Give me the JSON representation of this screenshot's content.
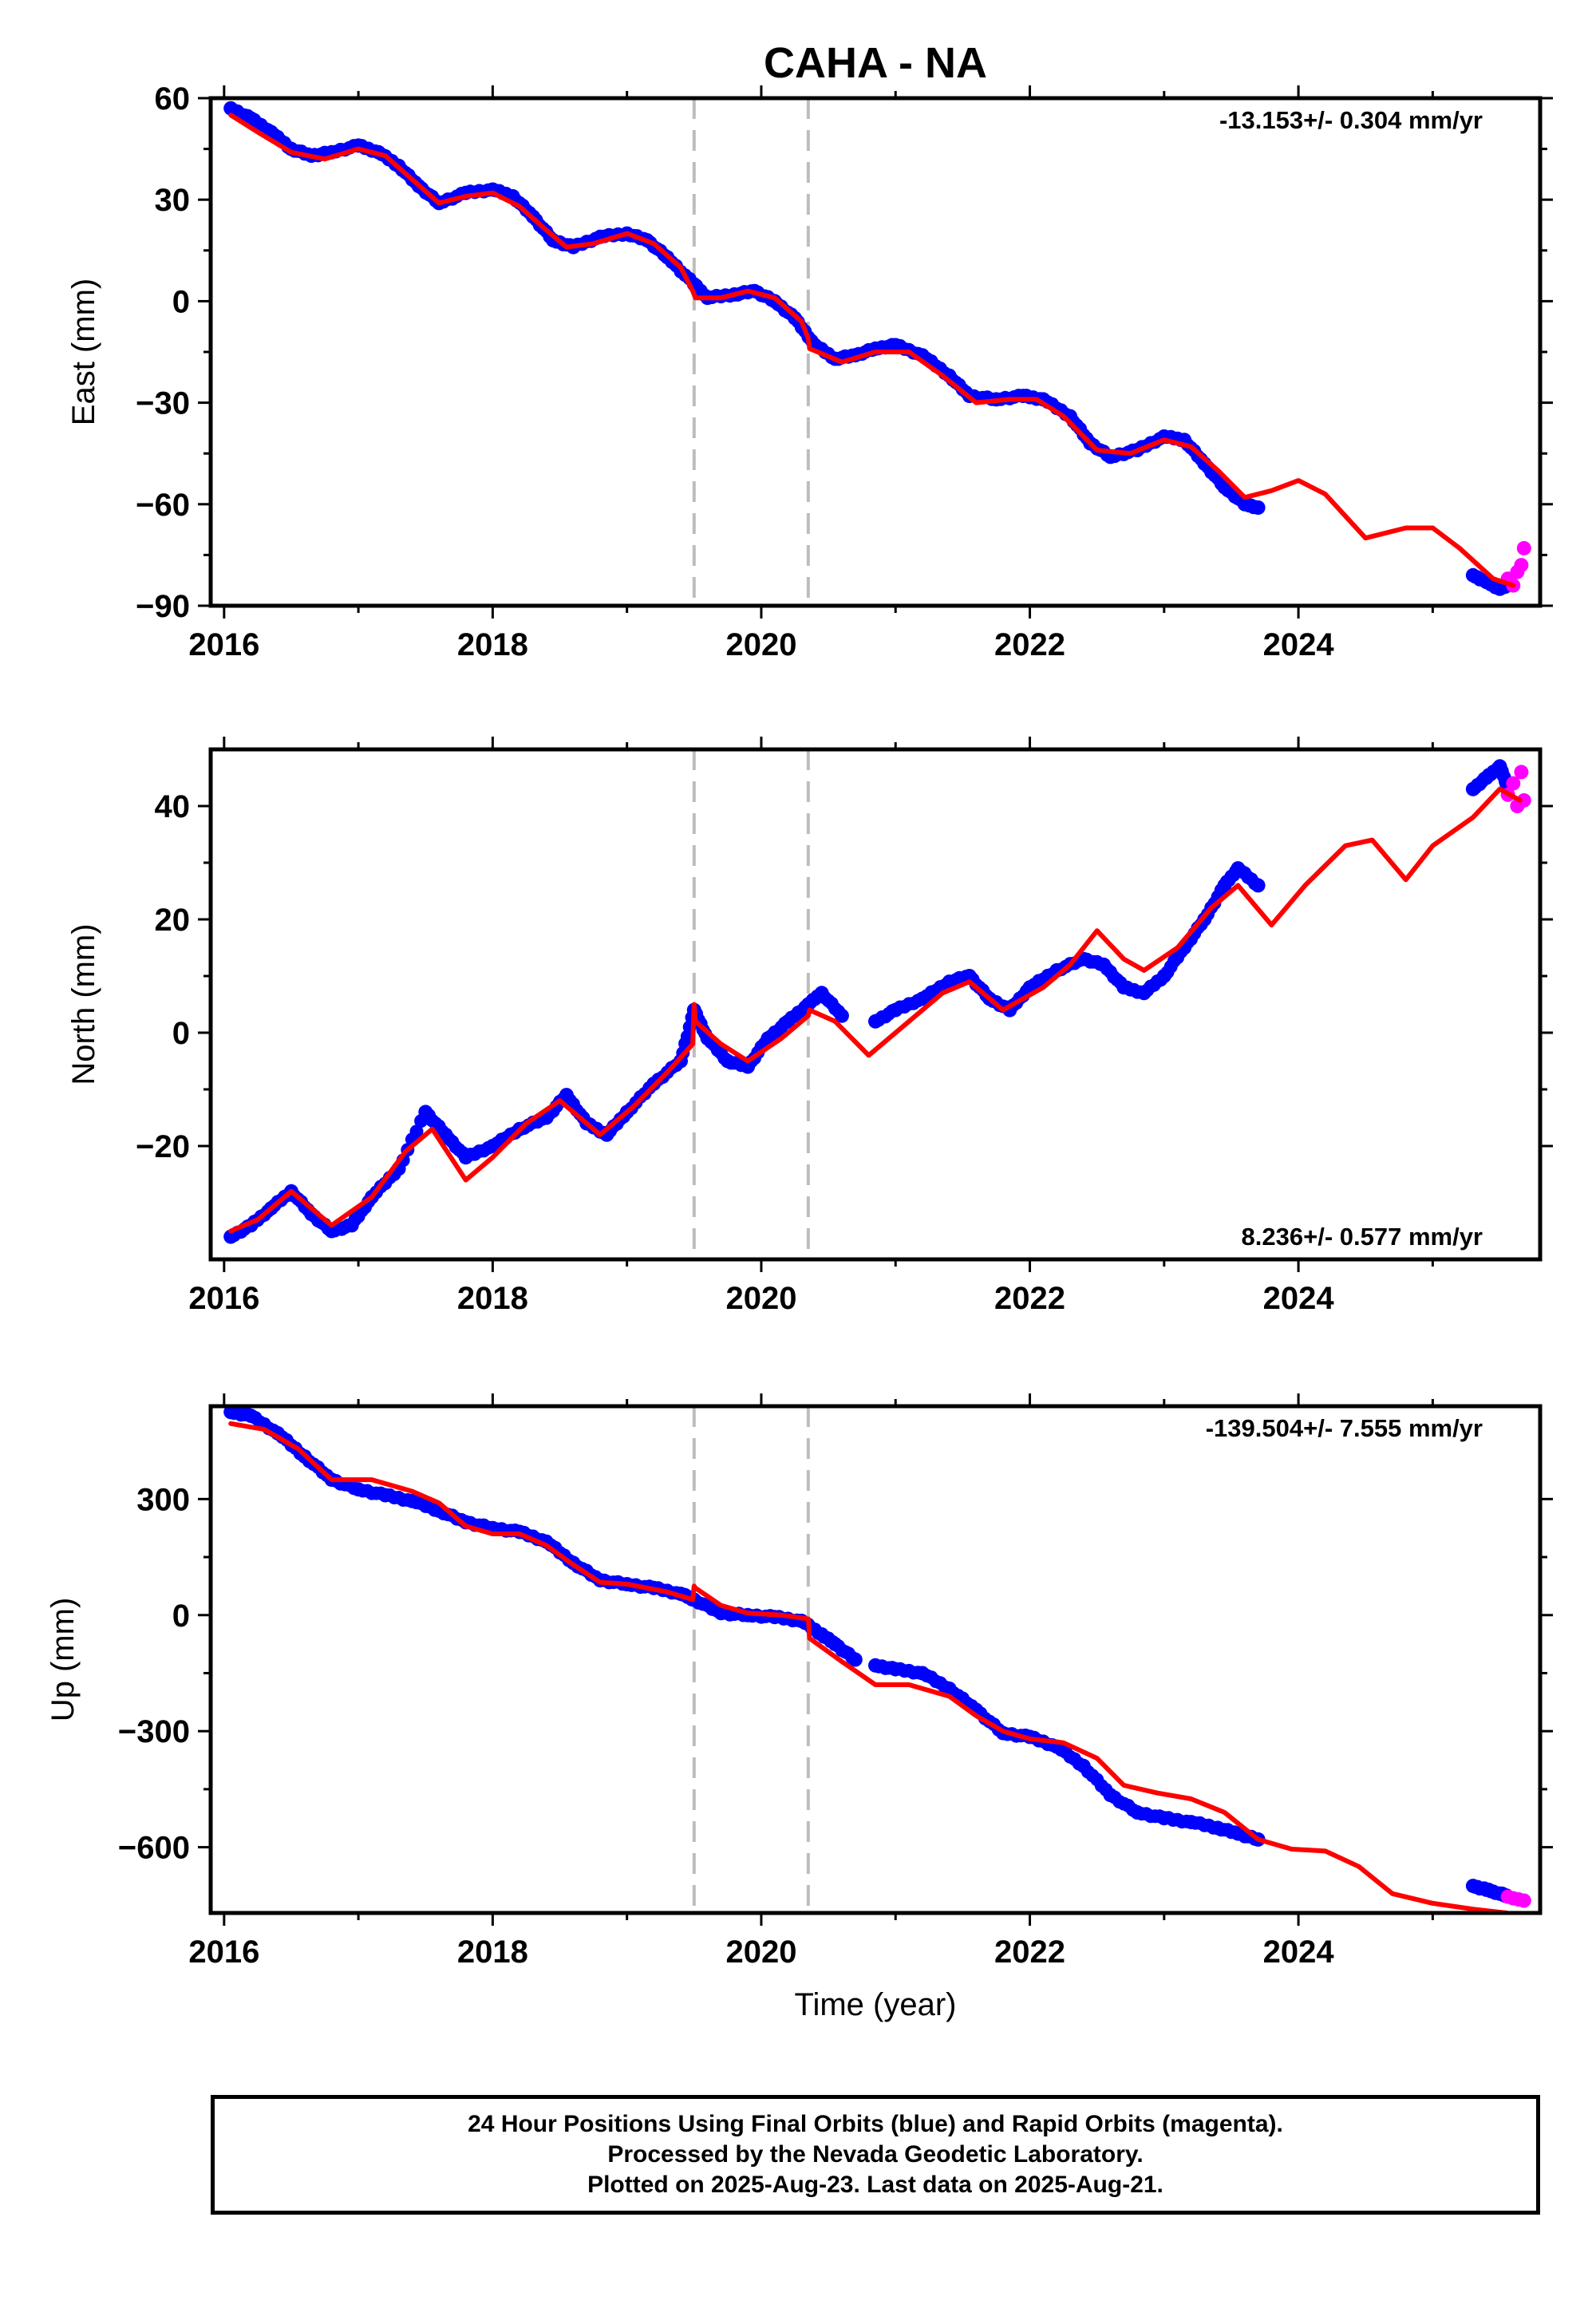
{
  "chart_data": [
    {
      "type": "scatter",
      "title": "CAHA - NA",
      "xlabel": "",
      "ylabel": "East (mm)",
      "xlim": [
        2015.9,
        2025.8
      ],
      "ylim": [
        -90,
        60
      ],
      "xticks": [
        2016,
        2018,
        2020,
        2022,
        2024
      ],
      "yticks": [
        60,
        30,
        0,
        -30,
        -60,
        -90
      ],
      "tick_labels": {
        "x": [
          "2016",
          "2018",
          "2020",
          "2022",
          "2024"
        ],
        "y": [
          "60",
          "30",
          "0",
          "−30",
          "−60",
          "−90"
        ]
      },
      "rate": "-13.153+/- 0.304 mm/yr",
      "rate_position": "top-right",
      "grid": false,
      "dashed_lines_x": [
        2019.5,
        2020.35
      ],
      "series": [
        {
          "kind": "final-orbits",
          "marker": "dot",
          "color": "#0000ff",
          "segments": [
            {
              "x": [
                2016.05,
                2016.2,
                2016.35,
                2016.5,
                2016.65,
                2016.8,
                2017.0,
                2017.15,
                2017.3,
                2017.45,
                2017.6,
                2017.8,
                2018.0,
                2018.15,
                2018.3,
                2018.45,
                2018.6,
                2018.8,
                2019.0,
                2019.15,
                2019.3,
                2019.5,
                2019.6,
                2019.8,
                2019.95,
                2020.1,
                2020.25,
                2020.4,
                2020.55,
                2020.7,
                2020.85,
                2021.0,
                2021.2,
                2021.4,
                2021.55,
                2021.75,
                2021.95,
                2022.1,
                2022.3,
                2022.45,
                2022.6,
                2022.8,
                2023.0,
                2023.15,
                2023.3,
                2023.45,
                2023.6,
                2023.7
              ],
              "y": [
                57,
                54,
                50,
                45,
                43,
                44,
                46,
                44,
                40,
                34,
                29,
                32,
                33,
                31,
                25,
                18,
                16,
                19,
                20,
                18,
                13,
                5,
                1,
                2,
                3,
                0,
                -5,
                -13,
                -17,
                -16,
                -14,
                -13,
                -16,
                -22,
                -28,
                -29,
                -28,
                -29,
                -34,
                -42,
                -46,
                -44,
                -40,
                -41,
                -48,
                -55,
                -60,
                -61
              ]
            },
            {
              "x": [
                2025.3,
                2025.4,
                2025.5,
                2025.55
              ],
              "y": [
                -81,
                -83,
                -85,
                -84
              ]
            }
          ]
        },
        {
          "kind": "rapid-orbits",
          "marker": "dot",
          "color": "#ff00ff",
          "x": [
            2025.56,
            2025.6,
            2025.63,
            2025.66,
            2025.68
          ],
          "y": [
            -82,
            -84,
            -80,
            -78,
            -73
          ]
        },
        {
          "kind": "model-fit",
          "marker": "line",
          "color": "#ff0000",
          "x": [
            2016.05,
            2016.25,
            2016.5,
            2016.75,
            2017.0,
            2017.2,
            2017.4,
            2017.6,
            2017.8,
            2018.0,
            2018.2,
            2018.4,
            2018.55,
            2018.75,
            2019.0,
            2019.2,
            2019.4,
            2019.49,
            2019.51,
            2019.7,
            2019.9,
            2020.1,
            2020.3,
            2020.35,
            2020.36,
            2020.6,
            2020.85,
            2021.1,
            2021.35,
            2021.6,
            2021.85,
            2022.05,
            2022.25,
            2022.5,
            2022.75,
            2023.0,
            2023.2,
            2023.4,
            2023.6,
            2023.8,
            2024.0,
            2024.2,
            2024.5,
            2024.8,
            2025.0,
            2025.2,
            2025.45,
            2025.6
          ],
          "y": [
            55,
            50,
            44,
            42,
            45,
            43,
            36,
            29,
            31,
            32,
            28,
            21,
            16,
            17,
            20,
            17,
            10,
            3,
            1,
            1,
            3,
            1,
            -6,
            -11,
            -14,
            -18,
            -15,
            -15,
            -22,
            -30,
            -29,
            -29,
            -34,
            -44,
            -45,
            -41,
            -43,
            -50,
            -58,
            -56,
            -53,
            -57,
            -70,
            -67,
            -67,
            -73,
            -82,
            -84
          ]
        }
      ]
    },
    {
      "type": "scatter",
      "xlabel": "",
      "ylabel": "North (mm)",
      "xlim": [
        2015.9,
        2025.8
      ],
      "ylim": [
        -40,
        50
      ],
      "xticks": [
        2016,
        2018,
        2020,
        2022,
        2024
      ],
      "yticks": [
        40,
        20,
        0,
        -20
      ],
      "tick_labels": {
        "x": [
          "2016",
          "2018",
          "2020",
          "2022",
          "2024"
        ],
        "y": [
          "40",
          "20",
          "0",
          "−20"
        ]
      },
      "rate": "8.236+/- 0.577 mm/yr",
      "rate_position": "bottom-right",
      "grid": false,
      "dashed_lines_x": [
        2019.5,
        2020.35
      ],
      "series": [
        {
          "kind": "final-orbits",
          "marker": "dot",
          "color": "#0000ff",
          "segments": [
            {
              "x": [
                2016.05,
                2016.2,
                2016.35,
                2016.5,
                2016.65,
                2016.8,
                2016.95,
                2017.1,
                2017.3,
                2017.5,
                2017.65,
                2017.8,
                2018.0,
                2018.2,
                2018.4,
                2018.55,
                2018.7,
                2018.85,
                2019.0,
                2019.2,
                2019.4,
                2019.5,
                2019.6,
                2019.75,
                2019.9,
                2020.05,
                2020.2,
                2020.35,
                2020.45,
                2020.6
              ],
              "y": [
                -36,
                -34,
                -31,
                -28,
                -32,
                -35,
                -34,
                -29,
                -24,
                -14,
                -18,
                -22,
                -20,
                -17,
                -15,
                -11,
                -16,
                -18,
                -14,
                -9,
                -5,
                4,
                -1,
                -5,
                -6,
                -1,
                2,
                5,
                7,
                3
              ]
            },
            {
              "x": [
                2020.85,
                2021.0,
                2021.2,
                2021.4,
                2021.55,
                2021.7,
                2021.85,
                2022.0,
                2022.2,
                2022.4,
                2022.55,
                2022.7,
                2022.85,
                2023.0,
                2023.15,
                2023.3,
                2023.45,
                2023.55,
                2023.7
              ],
              "y": [
                2,
                4,
                6,
                9,
                10,
                6,
                4,
                8,
                11,
                13,
                12,
                8,
                7,
                10,
                15,
                20,
                26,
                29,
                26
              ]
            },
            {
              "x": [
                2025.3,
                2025.4,
                2025.5,
                2025.55
              ],
              "y": [
                43,
                45,
                47,
                44
              ]
            }
          ]
        },
        {
          "kind": "rapid-orbits",
          "marker": "dot",
          "color": "#ff00ff",
          "x": [
            2025.56,
            2025.6,
            2025.63,
            2025.66,
            2025.68
          ],
          "y": [
            42,
            44,
            40,
            46,
            41
          ]
        },
        {
          "kind": "model-fit",
          "marker": "line",
          "color": "#ff0000",
          "x": [
            2016.05,
            2016.25,
            2016.5,
            2016.8,
            2017.1,
            2017.35,
            2017.55,
            2017.8,
            2018.0,
            2018.25,
            2018.5,
            2018.8,
            2019.05,
            2019.3,
            2019.49,
            2019.5,
            2019.51,
            2019.7,
            2019.9,
            2020.15,
            2020.35,
            2020.36,
            2020.55,
            2020.8,
            2021.1,
            2021.35,
            2021.55,
            2021.8,
            2022.1,
            2022.3,
            2022.5,
            2022.7,
            2022.85,
            2023.1,
            2023.35,
            2023.55,
            2023.8,
            2024.05,
            2024.35,
            2024.55,
            2024.8,
            2025.0,
            2025.3,
            2025.5,
            2025.65
          ],
          "y": [
            -35,
            -33,
            -28,
            -34,
            -29,
            -21,
            -17,
            -26,
            -22,
            -16,
            -12,
            -18,
            -13,
            -7,
            -2,
            5,
            2,
            -2,
            -5,
            -1,
            3,
            4,
            2,
            -4,
            2,
            7,
            9,
            4,
            8,
            12,
            18,
            13,
            11,
            15,
            22,
            26,
            19,
            26,
            33,
            34,
            27,
            33,
            38,
            43,
            41
          ]
        }
      ]
    },
    {
      "type": "scatter",
      "xlabel": "Time (year)",
      "ylabel": "Up (mm)",
      "xlim": [
        2015.9,
        2025.8
      ],
      "ylim": [
        -770,
        540
      ],
      "xticks": [
        2016,
        2018,
        2020,
        2022,
        2024
      ],
      "yticks": [
        300,
        0,
        -300,
        -600
      ],
      "tick_labels": {
        "x": [
          "2016",
          "2018",
          "2020",
          "2022",
          "2024"
        ],
        "y": [
          "300",
          "0",
          "−300",
          "−600"
        ]
      },
      "rate": "-139.504+/- 7.555 mm/yr",
      "rate_position": "top-right",
      "grid": false,
      "dashed_lines_x": [
        2019.5,
        2020.35
      ],
      "series": [
        {
          "kind": "final-orbits",
          "marker": "dot",
          "color": "#0000ff",
          "segments": [
            {
              "x": [
                2016.05,
                2016.2,
                2016.4,
                2016.6,
                2016.8,
                2017.0,
                2017.2,
                2017.4,
                2017.6,
                2017.8,
                2018.0,
                2018.2,
                2018.4,
                2018.6,
                2018.8,
                2019.0,
                2019.2,
                2019.4,
                2019.5,
                2019.7,
                2019.9,
                2020.1,
                2020.3,
                2020.45,
                2020.55,
                2020.7
              ],
              "y": [
                525,
                515,
                470,
                410,
                350,
                325,
                310,
                295,
                270,
                240,
                225,
                215,
                190,
                135,
                90,
                80,
                70,
                55,
                40,
                5,
                0,
                -5,
                -15,
                -50,
                -75,
                -115
              ]
            },
            {
              "x": [
                2020.85,
                2021.0,
                2021.2,
                2021.4,
                2021.6,
                2021.8,
                2022.0,
                2022.2,
                2022.4,
                2022.6,
                2022.8,
                2023.0,
                2023.2,
                2023.4,
                2023.55,
                2023.7
              ],
              "y": [
                -130,
                -140,
                -150,
                -190,
                -245,
                -305,
                -315,
                -340,
                -390,
                -465,
                -510,
                -525,
                -535,
                -550,
                -565,
                -580
              ]
            },
            {
              "x": [
                2025.3,
                2025.4,
                2025.5,
                2025.55
              ],
              "y": [
                -700,
                -710,
                -720,
                -725
              ]
            }
          ]
        },
        {
          "kind": "rapid-orbits",
          "marker": "dot",
          "color": "#ff00ff",
          "x": [
            2025.56,
            2025.6,
            2025.64,
            2025.68
          ],
          "y": [
            -728,
            -732,
            -735,
            -738
          ]
        },
        {
          "kind": "model-fit",
          "marker": "line",
          "color": "#ff0000",
          "x": [
            2016.05,
            2016.3,
            2016.55,
            2016.8,
            2017.1,
            2017.4,
            2017.6,
            2017.8,
            2018.0,
            2018.2,
            2018.4,
            2018.6,
            2018.8,
            2019.0,
            2019.3,
            2019.49,
            2019.5,
            2019.51,
            2019.7,
            2019.9,
            2020.15,
            2020.35,
            2020.36,
            2020.6,
            2020.85,
            2021.1,
            2021.4,
            2021.6,
            2021.8,
            2022.0,
            2022.25,
            2022.5,
            2022.7,
            2022.95,
            2023.2,
            2023.45,
            2023.7,
            2023.95,
            2024.2,
            2024.45,
            2024.7,
            2025.0,
            2025.3,
            2025.55
          ],
          "y": [
            495,
            480,
            430,
            350,
            350,
            320,
            290,
            230,
            210,
            210,
            180,
            130,
            85,
            80,
            60,
            40,
            75,
            70,
            25,
            5,
            0,
            -10,
            -60,
            -120,
            -180,
            -180,
            -210,
            -260,
            -300,
            -320,
            -330,
            -370,
            -440,
            -460,
            -475,
            -510,
            -580,
            -605,
            -610,
            -650,
            -720,
            -745,
            -760,
            -770
          ]
        }
      ]
    }
  ],
  "footer": {
    "line1": "24 Hour Positions Using Final Orbits (blue) and Rapid Orbits (magenta).",
    "line2": "Processed by the Nevada Geodetic Laboratory.",
    "line3": "Plotted on 2025-Aug-23. Last data on 2025-Aug-21."
  }
}
